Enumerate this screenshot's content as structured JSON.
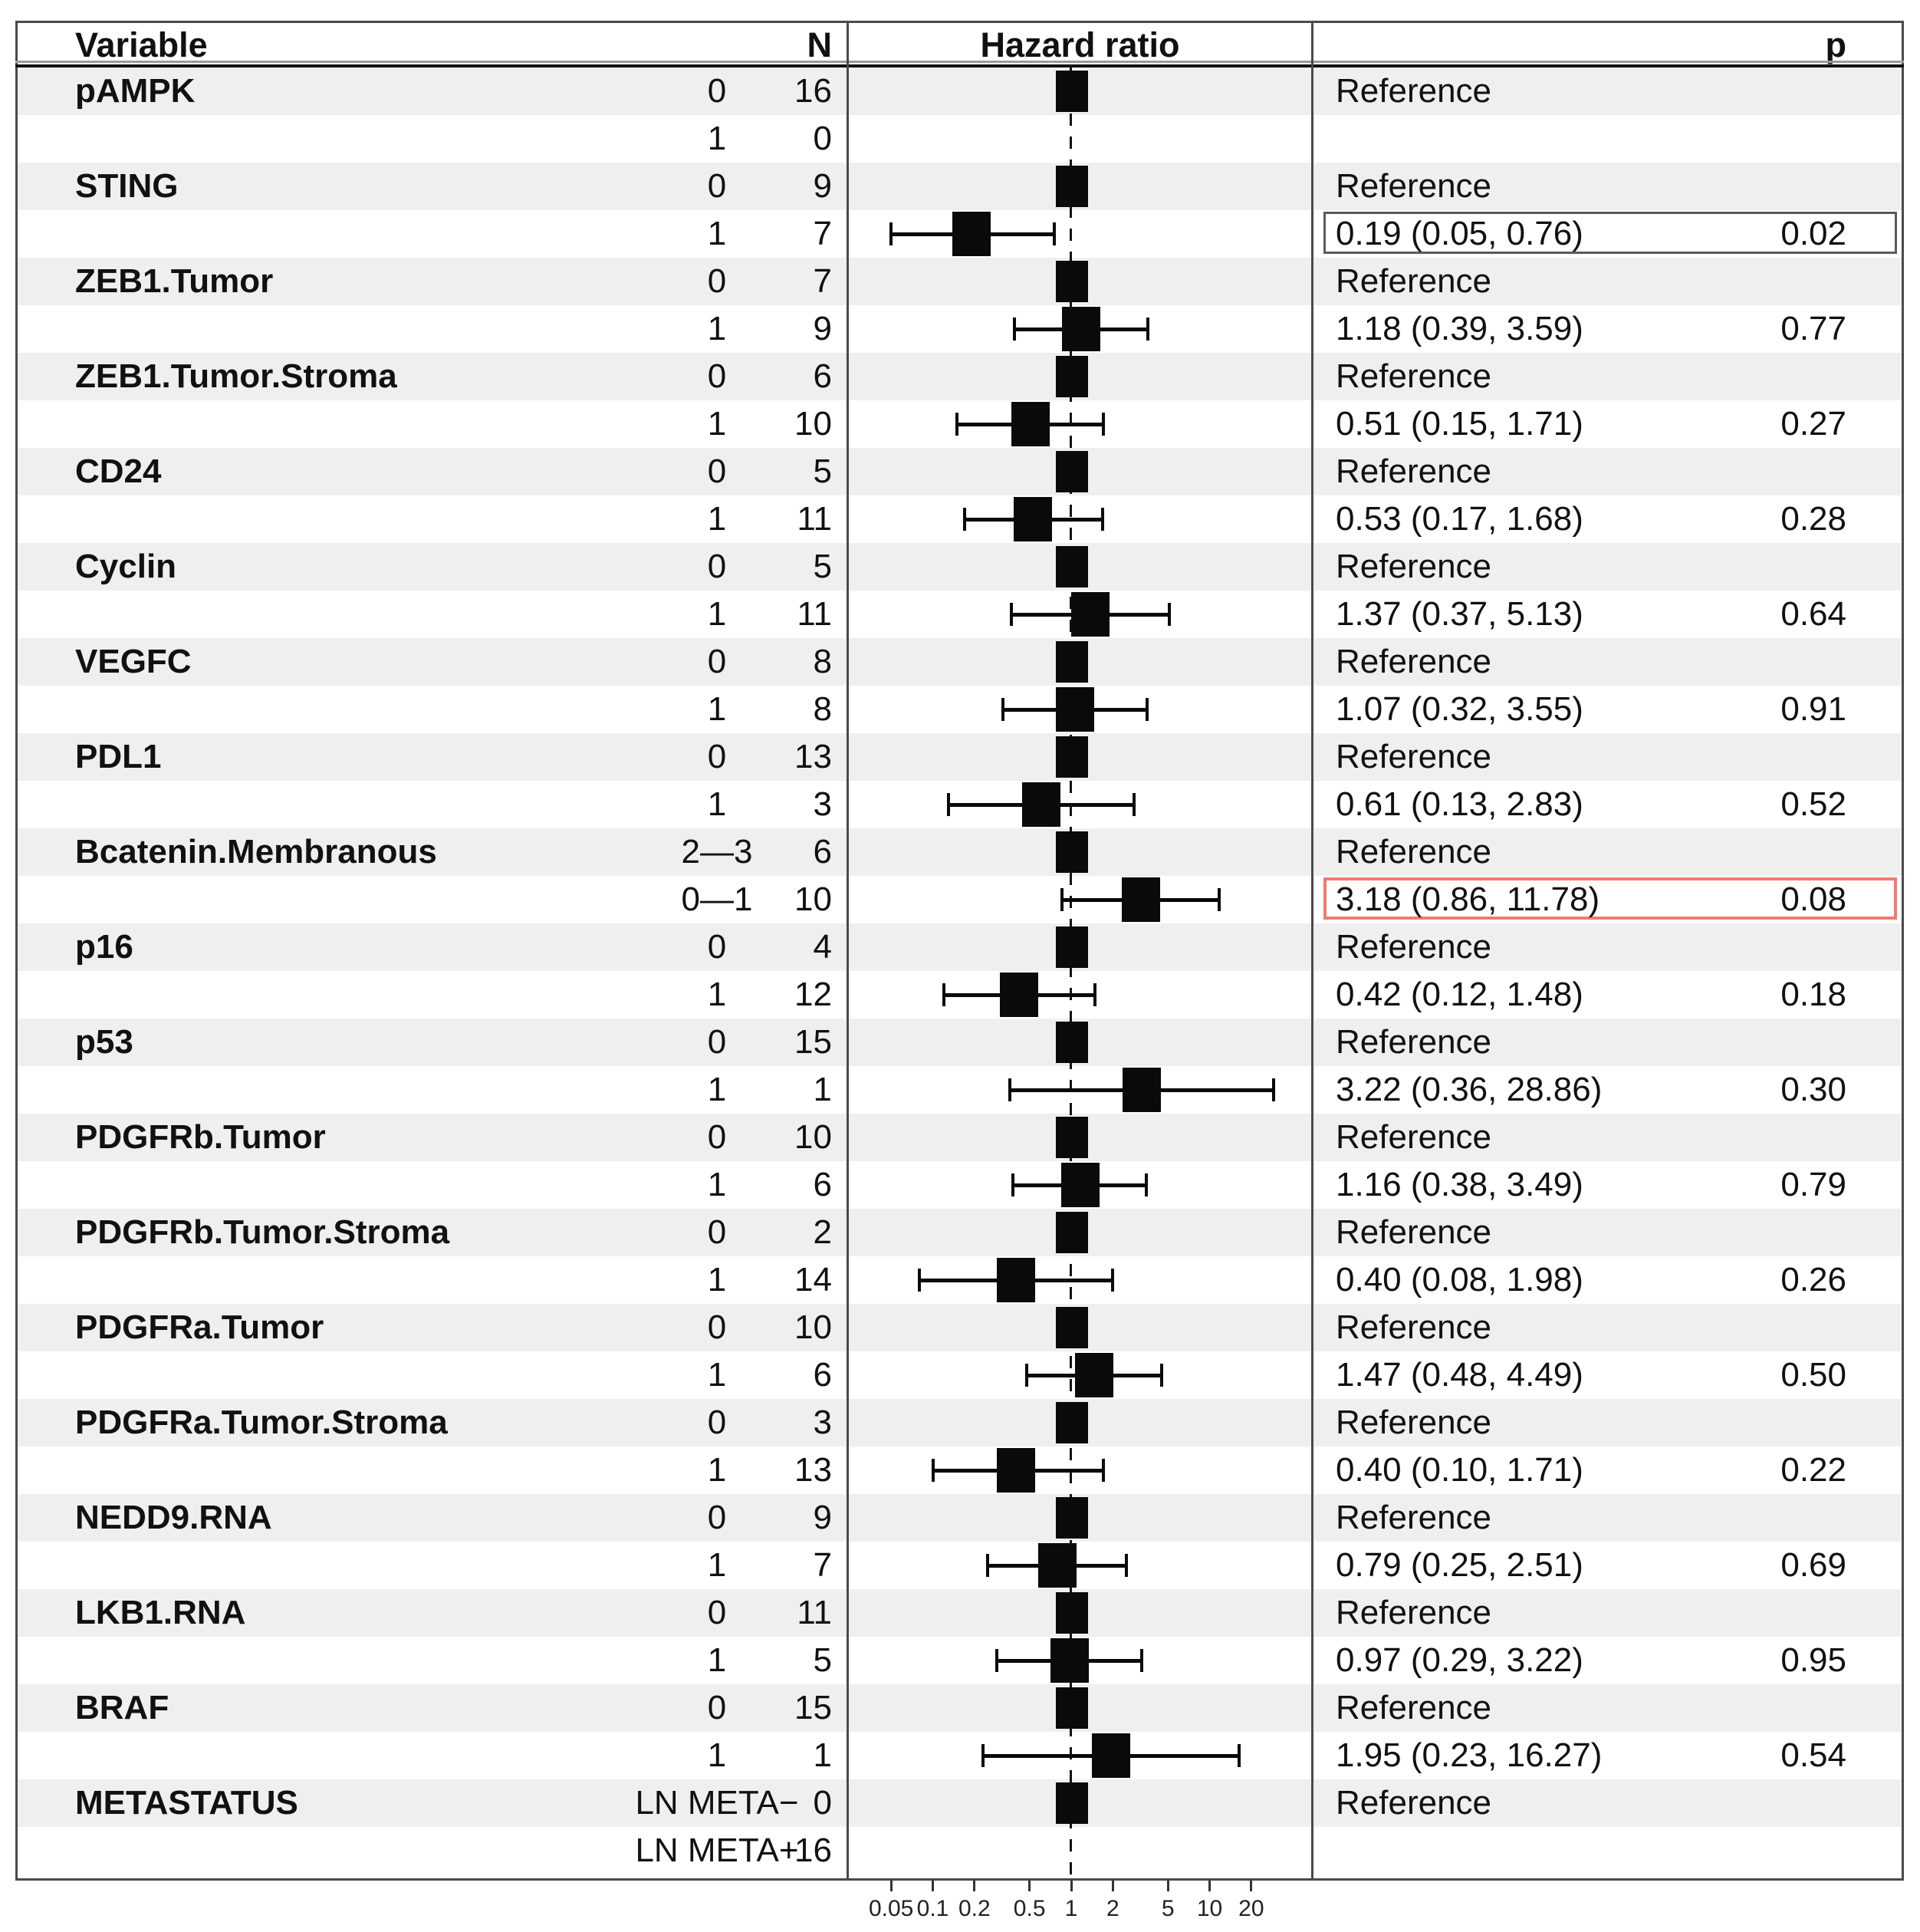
{
  "header": {
    "variable": "Variable",
    "n": "N",
    "hazard": "Hazard ratio",
    "p": "p"
  },
  "colors": {
    "stripe": "#efefef",
    "border": "#4a4a4a",
    "marker": "#0a0a0a",
    "box_red": "#f4796c",
    "box_gray": "#5a5a5a",
    "text": "#111111"
  },
  "chart_data": {
    "type": "forest",
    "title": "",
    "x_axis": {
      "scale": "log",
      "ticks": [
        "0.05",
        "0.1",
        "0.2",
        "0.5",
        "1",
        "2",
        "5",
        "10",
        "20"
      ],
      "reference_line": 1,
      "range": [
        0.025,
        55
      ]
    },
    "legend": null,
    "rows": [
      {
        "variable": "pAMPK",
        "level": "0",
        "n": "16",
        "kind": "ref",
        "label": "Reference",
        "p": ""
      },
      {
        "variable": "",
        "level": "1",
        "n": "0",
        "kind": "blank",
        "label": "",
        "p": ""
      },
      {
        "variable": "STING",
        "level": "0",
        "n": "9",
        "kind": "ref",
        "label": "Reference",
        "p": ""
      },
      {
        "variable": "",
        "level": "1",
        "n": "7",
        "kind": "est",
        "hr": 0.19,
        "lo": 0.05,
        "hi": 0.76,
        "label": "0.19 (0.05, 0.76)",
        "p": "0.02",
        "box": "gray"
      },
      {
        "variable": "ZEB1.Tumor",
        "level": "0",
        "n": "7",
        "kind": "ref",
        "label": "Reference",
        "p": ""
      },
      {
        "variable": "",
        "level": "1",
        "n": "9",
        "kind": "est",
        "hr": 1.18,
        "lo": 0.39,
        "hi": 3.59,
        "label": "1.18 (0.39, 3.59)",
        "p": "0.77"
      },
      {
        "variable": "ZEB1.Tumor.Stroma",
        "level": "0",
        "n": "6",
        "kind": "ref",
        "label": "Reference",
        "p": ""
      },
      {
        "variable": "",
        "level": "1",
        "n": "10",
        "kind": "est",
        "hr": 0.51,
        "lo": 0.15,
        "hi": 1.71,
        "label": "0.51 (0.15, 1.71)",
        "p": "0.27"
      },
      {
        "variable": "CD24",
        "level": "0",
        "n": "5",
        "kind": "ref",
        "label": "Reference",
        "p": ""
      },
      {
        "variable": "",
        "level": "1",
        "n": "11",
        "kind": "est",
        "hr": 0.53,
        "lo": 0.17,
        "hi": 1.68,
        "label": "0.53 (0.17, 1.68)",
        "p": "0.28"
      },
      {
        "variable": "Cyclin",
        "level": "0",
        "n": "5",
        "kind": "ref",
        "label": "Reference",
        "p": ""
      },
      {
        "variable": "",
        "level": "1",
        "n": "11",
        "kind": "est",
        "hr": 1.37,
        "lo": 0.37,
        "hi": 5.13,
        "label": "1.37 (0.37, 5.13)",
        "p": "0.64"
      },
      {
        "variable": "VEGFC",
        "level": "0",
        "n": "8",
        "kind": "ref",
        "label": "Reference",
        "p": ""
      },
      {
        "variable": "",
        "level": "1",
        "n": "8",
        "kind": "est",
        "hr": 1.07,
        "lo": 0.32,
        "hi": 3.55,
        "label": "1.07 (0.32, 3.55)",
        "p": "0.91"
      },
      {
        "variable": "PDL1",
        "level": "0",
        "n": "13",
        "kind": "ref",
        "label": "Reference",
        "p": ""
      },
      {
        "variable": "",
        "level": "1",
        "n": "3",
        "kind": "est",
        "hr": 0.61,
        "lo": 0.13,
        "hi": 2.83,
        "label": "0.61 (0.13, 2.83)",
        "p": "0.52"
      },
      {
        "variable": "Bcatenin.Membranous",
        "level": "2—3",
        "n": "6",
        "kind": "ref",
        "label": "Reference",
        "p": ""
      },
      {
        "variable": "",
        "level": "0—1",
        "n": "10",
        "kind": "est",
        "hr": 3.18,
        "lo": 0.86,
        "hi": 11.78,
        "label": "3.18 (0.86, 11.78)",
        "p": "0.08",
        "box": "red"
      },
      {
        "variable": "p16",
        "level": "0",
        "n": "4",
        "kind": "ref",
        "label": "Reference",
        "p": ""
      },
      {
        "variable": "",
        "level": "1",
        "n": "12",
        "kind": "est",
        "hr": 0.42,
        "lo": 0.12,
        "hi": 1.48,
        "label": "0.42 (0.12, 1.48)",
        "p": "0.18"
      },
      {
        "variable": "p53",
        "level": "0",
        "n": "15",
        "kind": "ref",
        "label": "Reference",
        "p": ""
      },
      {
        "variable": "",
        "level": "1",
        "n": "1",
        "kind": "est",
        "hr": 3.22,
        "lo": 0.36,
        "hi": 28.86,
        "label": "3.22 (0.36, 28.86)",
        "p": "0.30"
      },
      {
        "variable": "PDGFRb.Tumor",
        "level": "0",
        "n": "10",
        "kind": "ref",
        "label": "Reference",
        "p": ""
      },
      {
        "variable": "",
        "level": "1",
        "n": "6",
        "kind": "est",
        "hr": 1.16,
        "lo": 0.38,
        "hi": 3.49,
        "label": "1.16 (0.38, 3.49)",
        "p": "0.79"
      },
      {
        "variable": "PDGFRb.Tumor.Stroma",
        "level": "0",
        "n": "2",
        "kind": "ref",
        "label": "Reference",
        "p": ""
      },
      {
        "variable": "",
        "level": "1",
        "n": "14",
        "kind": "est",
        "hr": 0.4,
        "lo": 0.08,
        "hi": 1.98,
        "label": "0.40 (0.08, 1.98)",
        "p": "0.26"
      },
      {
        "variable": "PDGFRa.Tumor",
        "level": "0",
        "n": "10",
        "kind": "ref",
        "label": "Reference",
        "p": ""
      },
      {
        "variable": "",
        "level": "1",
        "n": "6",
        "kind": "est",
        "hr": 1.47,
        "lo": 0.48,
        "hi": 4.49,
        "label": "1.47 (0.48, 4.49)",
        "p": "0.50"
      },
      {
        "variable": "PDGFRa.Tumor.Stroma",
        "level": "0",
        "n": "3",
        "kind": "ref",
        "label": "Reference",
        "p": ""
      },
      {
        "variable": "",
        "level": "1",
        "n": "13",
        "kind": "est",
        "hr": 0.4,
        "lo": 0.1,
        "hi": 1.71,
        "label": "0.40 (0.10, 1.71)",
        "p": "0.22"
      },
      {
        "variable": "NEDD9.RNA",
        "level": "0",
        "n": "9",
        "kind": "ref",
        "label": "Reference",
        "p": ""
      },
      {
        "variable": "",
        "level": "1",
        "n": "7",
        "kind": "est",
        "hr": 0.79,
        "lo": 0.25,
        "hi": 2.51,
        "label": "0.79 (0.25, 2.51)",
        "p": "0.69"
      },
      {
        "variable": "LKB1.RNA",
        "level": "0",
        "n": "11",
        "kind": "ref",
        "label": "Reference",
        "p": ""
      },
      {
        "variable": "",
        "level": "1",
        "n": "5",
        "kind": "est",
        "hr": 0.97,
        "lo": 0.29,
        "hi": 3.22,
        "label": "0.97 (0.29, 3.22)",
        "p": "0.95"
      },
      {
        "variable": "BRAF",
        "level": "0",
        "n": "15",
        "kind": "ref",
        "label": "Reference",
        "p": ""
      },
      {
        "variable": "",
        "level": "1",
        "n": "1",
        "kind": "est",
        "hr": 1.95,
        "lo": 0.23,
        "hi": 16.27,
        "label": "1.95 (0.23, 16.27)",
        "p": "0.54"
      },
      {
        "variable": "METASTATUS",
        "level": "LN META−",
        "n": "0",
        "kind": "ref",
        "label": "Reference",
        "p": ""
      },
      {
        "variable": "",
        "level": "LN META+",
        "n": "16",
        "kind": "blank",
        "label": "",
        "p": ""
      }
    ]
  }
}
